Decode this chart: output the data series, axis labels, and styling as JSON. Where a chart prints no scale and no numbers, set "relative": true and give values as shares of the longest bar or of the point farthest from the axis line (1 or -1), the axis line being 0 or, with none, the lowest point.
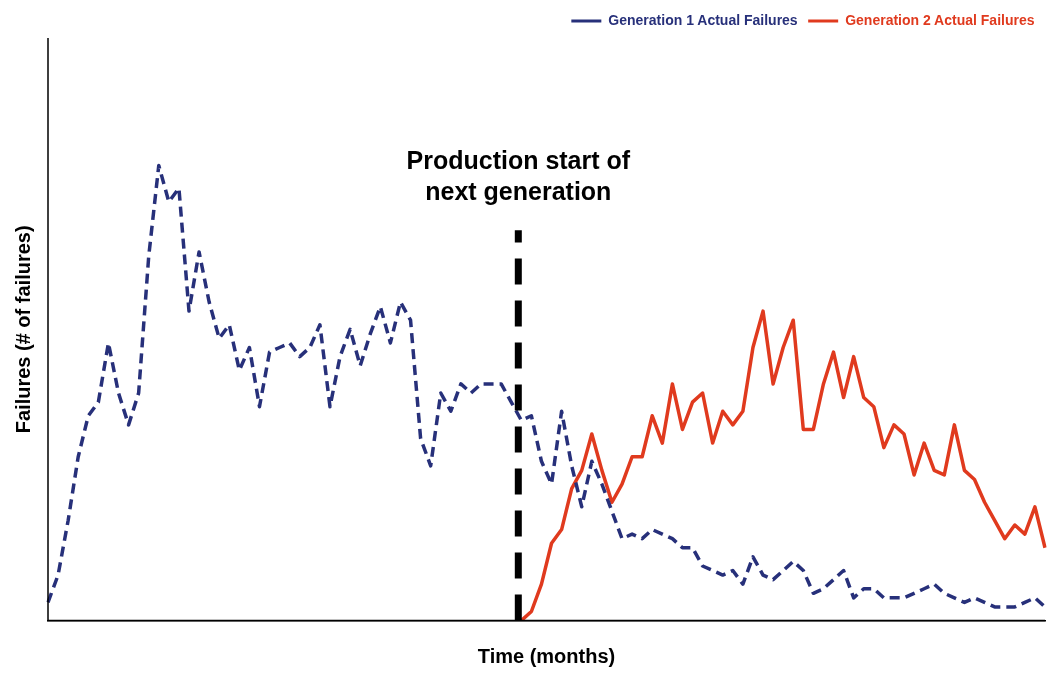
{
  "chart_data": {
    "type": "line",
    "relative": true,
    "xlabel": "Time (months)",
    "ylabel": "Failures (# of failures)",
    "categories": [
      null,
      null,
      null,
      null,
      null,
      null,
      null,
      null,
      null,
      null,
      null,
      null,
      null,
      null,
      null,
      null,
      null,
      null,
      null,
      null,
      null,
      null,
      null,
      null,
      null,
      null,
      null,
      null,
      null,
      null,
      null,
      null,
      null,
      null,
      null,
      null,
      null,
      null,
      null,
      null,
      null,
      null,
      null,
      null,
      null,
      null,
      null,
      null,
      null,
      null,
      null,
      null,
      null,
      null,
      null,
      null,
      null,
      null,
      null,
      null,
      null,
      null,
      null,
      null,
      null,
      null,
      null,
      null,
      null,
      null,
      null,
      null,
      null,
      null,
      null,
      null,
      null,
      null,
      null,
      null,
      null,
      null,
      null,
      null,
      null,
      null,
      null,
      null,
      null,
      null,
      null,
      null,
      null,
      null,
      null,
      null,
      null,
      null,
      null,
      null
    ],
    "grid": false,
    "legend": "top right",
    "annotations": [
      "Production start of next generation"
    ],
    "series": [
      {
        "name": "Generation 1 Actual Failures",
        "color": "#27307a",
        "line_style": "dashed",
        "values": [
          0.04,
          0.1,
          0.22,
          0.36,
          0.45,
          0.48,
          0.61,
          0.5,
          0.43,
          0.5,
          0.8,
          1.0,
          0.92,
          0.95,
          0.68,
          0.81,
          0.7,
          0.62,
          0.65,
          0.55,
          0.6,
          0.47,
          0.59,
          0.6,
          0.61,
          0.58,
          0.6,
          0.65,
          0.47,
          0.58,
          0.64,
          0.56,
          0.63,
          0.69,
          0.61,
          0.7,
          0.66,
          0.4,
          0.34,
          0.5,
          0.46,
          0.52,
          0.5,
          0.52,
          0.52,
          0.52,
          0.48,
          0.44,
          0.45,
          0.35,
          0.3,
          0.46,
          0.34,
          0.25,
          0.35,
          0.3,
          0.24,
          0.18,
          0.19,
          0.18,
          0.2,
          0.19,
          0.18,
          0.16,
          0.16,
          0.12,
          0.11,
          0.1,
          0.11,
          0.08,
          0.14,
          0.1,
          0.09,
          0.11,
          0.13,
          0.11,
          0.06,
          0.07,
          0.09,
          0.11,
          0.05,
          0.07,
          0.07,
          0.05,
          0.05,
          0.05,
          0.06,
          0.07,
          0.08,
          0.06,
          0.05,
          0.04,
          0.05,
          0.04,
          0.03,
          0.03,
          0.03,
          0.04,
          0.05,
          0.03
        ]
      },
      {
        "name": "Generation 2 Actual Failures",
        "color": "#e03a1e",
        "line_style": "solid",
        "values": [
          null,
          null,
          null,
          null,
          null,
          null,
          null,
          null,
          null,
          null,
          null,
          null,
          null,
          null,
          null,
          null,
          null,
          null,
          null,
          null,
          null,
          null,
          null,
          null,
          null,
          null,
          null,
          null,
          null,
          null,
          null,
          null,
          null,
          null,
          null,
          null,
          null,
          null,
          null,
          null,
          null,
          null,
          null,
          null,
          null,
          null,
          null,
          0,
          0.02,
          0.08,
          0.17,
          0.2,
          0.29,
          0.33,
          0.41,
          0.33,
          0.26,
          0.3,
          0.36,
          0.36,
          0.45,
          0.39,
          0.52,
          0.42,
          0.48,
          0.5,
          0.39,
          0.46,
          0.43,
          0.46,
          0.6,
          0.68,
          0.52,
          0.6,
          0.66,
          0.42,
          0.42,
          0.52,
          0.59,
          0.49,
          0.58,
          0.49,
          0.47,
          0.38,
          0.43,
          0.41,
          0.32,
          0.39,
          0.33,
          0.32,
          0.43,
          0.33,
          0.31,
          0.26,
          0.22,
          0.18,
          0.21,
          0.19,
          0.25,
          0.16
        ]
      }
    ]
  }
}
